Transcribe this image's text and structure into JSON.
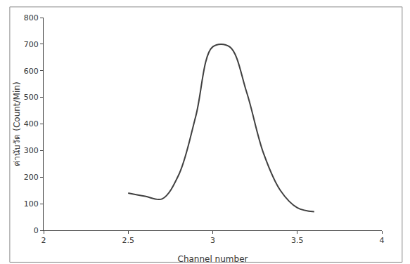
{
  "chart_data": {
    "type": "line",
    "x": [
      2.5,
      2.6,
      2.7,
      2.8,
      2.9,
      3.0,
      3.1,
      3.2,
      3.3,
      3.4,
      3.5,
      3.6
    ],
    "values": [
      140,
      128,
      118,
      210,
      430,
      690,
      690,
      520,
      290,
      150,
      85,
      70
    ],
    "color": "#404040",
    "marker": "none",
    "line_style": "smooth",
    "x_label": "Channel number",
    "y_label": "ค่านับวัด (Count/Min)",
    "xlim": [
      2,
      4
    ],
    "xticks": [
      2,
      2.5,
      3,
      3.5,
      4
    ],
    "ylim": [
      0,
      800
    ],
    "yticks": [
      0,
      100,
      200,
      300,
      400,
      500,
      600,
      700,
      800
    ],
    "grid": false
  }
}
